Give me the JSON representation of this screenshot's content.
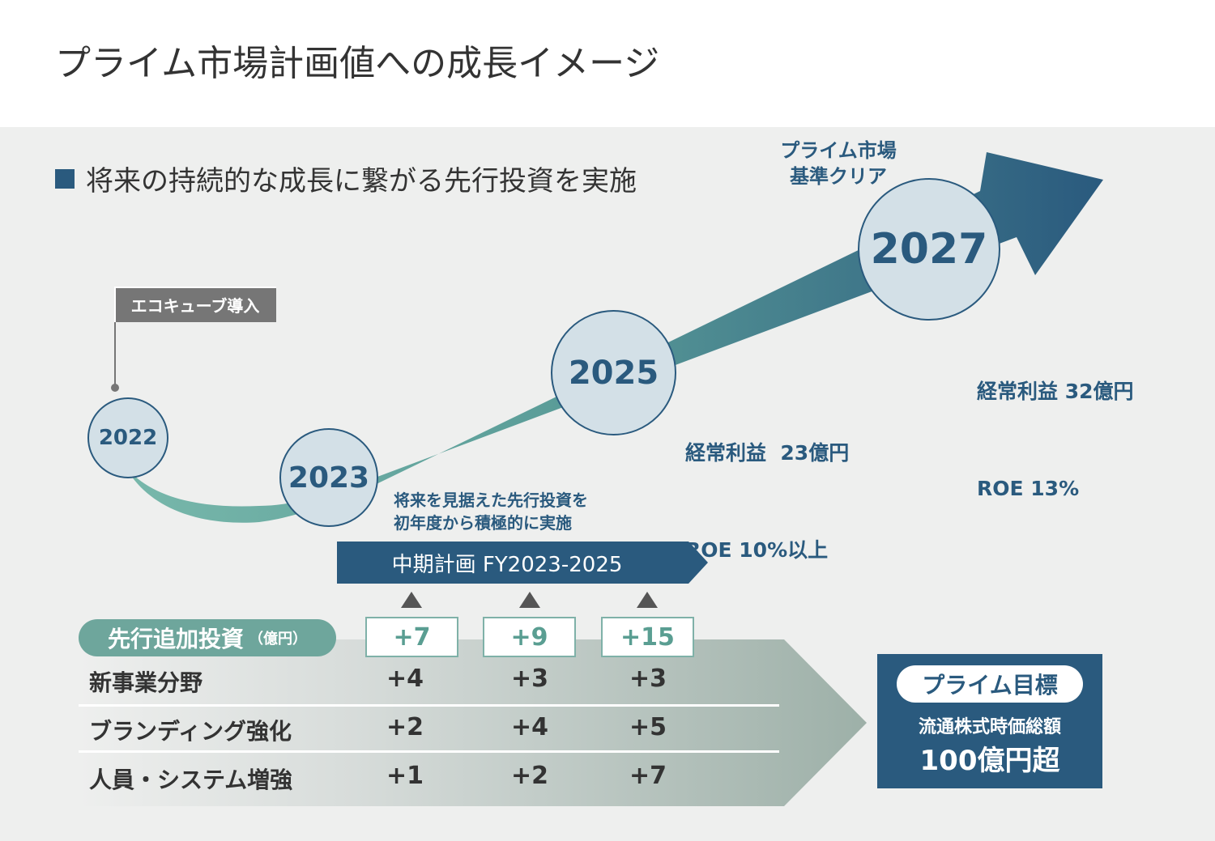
{
  "title": "プライム市場計画値への成長イメージ",
  "subtitle": "将来の持続的な成長に繋がる先行投資を実施",
  "milestones": [
    {
      "year": "2022"
    },
    {
      "year": "2023"
    },
    {
      "year": "2025"
    },
    {
      "year": "2027"
    }
  ],
  "eco_tag": "エコキューブ導入",
  "prime_clear": {
    "line1": "プライム市場",
    "line2": "基準クリア"
  },
  "kpi_2025": {
    "line1": "経常利益  23億円",
    "line2": "ROE 10%以上"
  },
  "kpi_2027": {
    "line1": "経常利益 32億円",
    "line2": "ROE 13%"
  },
  "invest_note": {
    "line1": "将来を見据えた先行投資を",
    "line2": "初年度から積極的に実施"
  },
  "plan_banner": "中期計画 FY2023-2025",
  "investment": {
    "label": "先行追加投資",
    "unit": "（億円）",
    "totals": [
      "+7",
      "+9",
      "+15"
    ],
    "rows": [
      {
        "label": "新事業分野",
        "values": [
          "+4",
          "+3",
          "+3"
        ]
      },
      {
        "label": "ブランディング強化",
        "values": [
          "+2",
          "+4",
          "+5"
        ]
      },
      {
        "label": "人員・システム増強",
        "values": [
          "+1",
          "+2",
          "+7"
        ]
      }
    ]
  },
  "goal": {
    "pill": "プライム目標",
    "line1": "流通株式時価総額",
    "line2": "100億円超"
  },
  "colors": {
    "navy": "#2a5a7e",
    "teal": "#6ea69c",
    "circle_fill": "#d3e0e7",
    "panel_bg": "#eeefee"
  }
}
